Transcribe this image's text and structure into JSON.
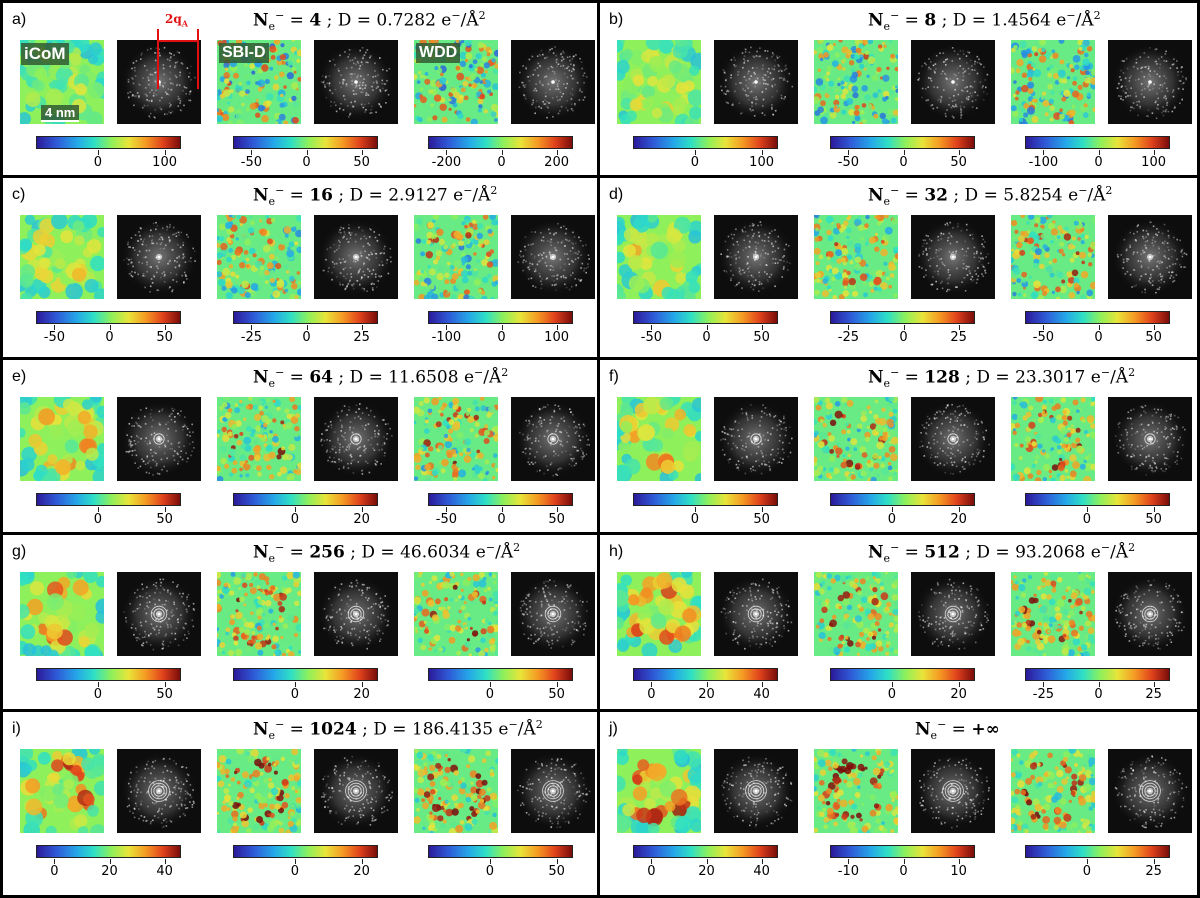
{
  "overlays": {
    "icom": "iCoM",
    "sbid": "SBI-D",
    "wdd": "WDD",
    "scale": "4 nm",
    "arrow": "2q",
    "arrow_sub": "A"
  },
  "panels": [
    {
      "label": "a)",
      "n": "4",
      "d": "0.7282",
      "ticks": [
        [
          "0",
          "100"
        ],
        [
          "-50",
          "0",
          "50"
        ],
        [
          "-200",
          "0",
          "200"
        ]
      ]
    },
    {
      "label": "b)",
      "n": "8",
      "d": "1.4564",
      "ticks": [
        [
          "0",
          "100"
        ],
        [
          "-50",
          "0",
          "50"
        ],
        [
          "-100",
          "0",
          "100"
        ]
      ]
    },
    {
      "label": "c)",
      "n": "16",
      "d": "2.9127",
      "ticks": [
        [
          "-50",
          "0",
          "50"
        ],
        [
          "-25",
          "0",
          "25"
        ],
        [
          "-100",
          "0",
          "100"
        ]
      ]
    },
    {
      "label": "d)",
      "n": "32",
      "d": "5.8254",
      "ticks": [
        [
          "-50",
          "0",
          "50"
        ],
        [
          "-25",
          "0",
          "25"
        ],
        [
          "-50",
          "0",
          "50"
        ]
      ]
    },
    {
      "label": "e)",
      "n": "64",
      "d": "11.6508",
      "ticks": [
        [
          "0",
          "50"
        ],
        [
          "0",
          "20"
        ],
        [
          "-50",
          "0",
          "50"
        ]
      ]
    },
    {
      "label": "f)",
      "n": "128",
      "d": "23.3017",
      "ticks": [
        [
          "0",
          "50"
        ],
        [
          "0",
          "20"
        ],
        [
          "0",
          "50"
        ]
      ]
    },
    {
      "label": "g)",
      "n": "256",
      "d": "46.6034",
      "ticks": [
        [
          "0",
          "50"
        ],
        [
          "0",
          "20"
        ],
        [
          "0",
          "50"
        ]
      ]
    },
    {
      "label": "h)",
      "n": "512",
      "d": "93.2068",
      "ticks": [
        [
          "0",
          "20",
          "40"
        ],
        [
          "0",
          "20"
        ],
        [
          "-25",
          "0",
          "25"
        ]
      ]
    },
    {
      "label": "i)",
      "n": "1024",
      "d": "186.4135",
      "ticks": [
        [
          "0",
          "20",
          "40"
        ],
        [
          "0",
          "20"
        ],
        [
          "0",
          "50"
        ]
      ]
    },
    {
      "label": "j)",
      "n": "+∞",
      "d": "",
      "ticks": [
        [
          "0",
          "20",
          "40"
        ],
        [
          "-10",
          "0",
          "10"
        ],
        [
          "0",
          "25"
        ]
      ]
    }
  ],
  "strings": {
    "n_prefix": "N",
    "n_sub": "e",
    "n_sup": "−",
    "eq": " = ",
    "sep": " ; D = ",
    "unit": " e",
    "unit_sup": "−",
    "unit_tail": "/Å",
    "unit_sup2": "2"
  }
}
